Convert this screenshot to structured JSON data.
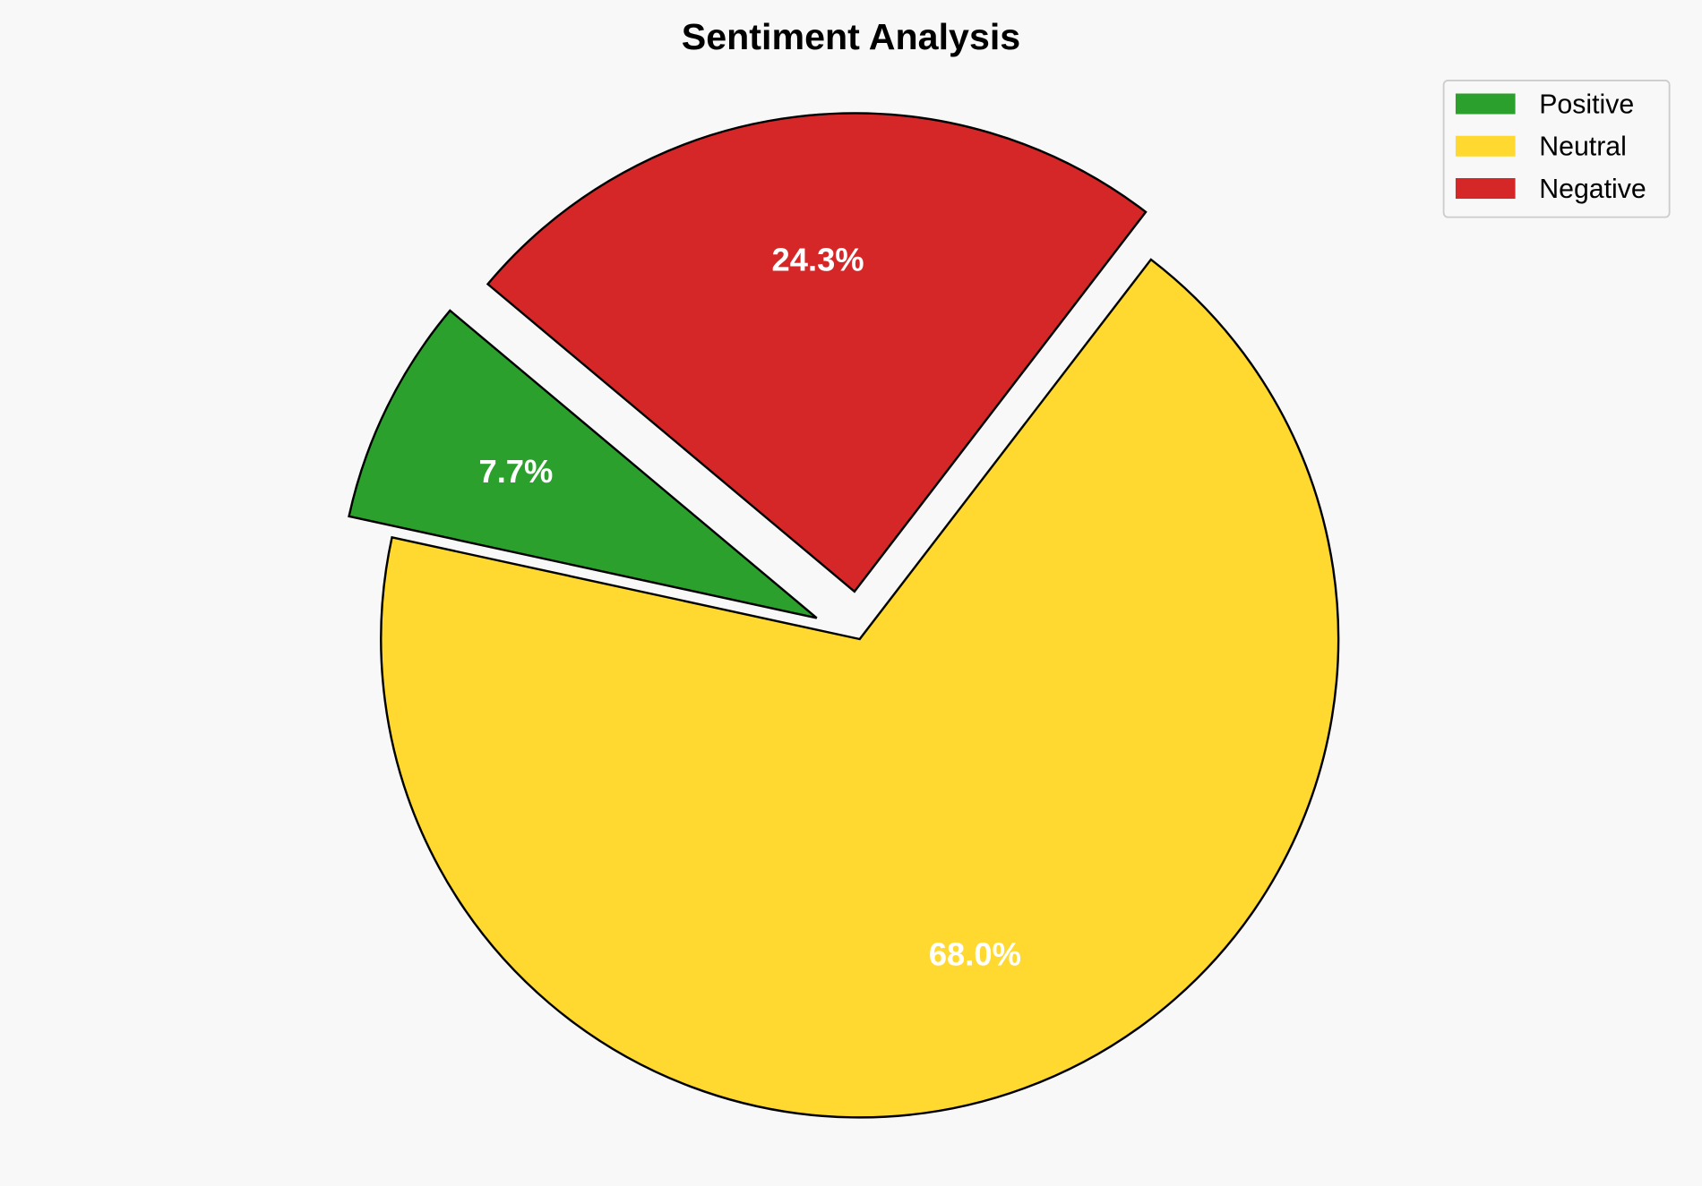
{
  "chart_data": {
    "type": "pie",
    "title": "Sentiment Analysis",
    "categories": [
      "Positive",
      "Neutral",
      "Negative"
    ],
    "values": [
      7.7,
      68.0,
      24.3
    ],
    "labels": [
      "7.7%",
      "68.0%",
      "24.3%"
    ],
    "colors": [
      "#2ca02c",
      "#ffd92f",
      "#d62728"
    ],
    "explode": [
      0.1,
      0,
      0.1
    ],
    "start_angle": 140,
    "legend_position": "top-right",
    "edge_color": "#000000",
    "background": "#f8f8f8"
  }
}
